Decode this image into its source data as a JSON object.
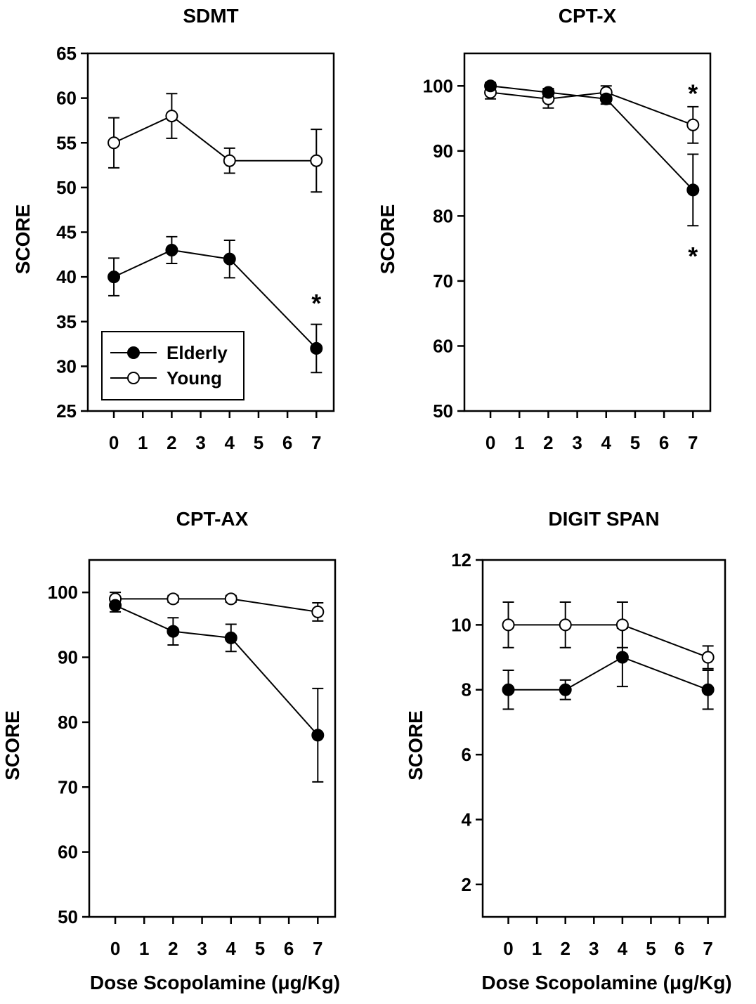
{
  "chart_data": [
    {
      "type": "line",
      "title": "SDMT",
      "ylabel": "SCORE",
      "xlabel": "",
      "x_ticks": [
        0,
        1,
        2,
        3,
        4,
        5,
        6,
        7
      ],
      "ylim": [
        25,
        65
      ],
      "y_ticks": [
        25,
        30,
        35,
        40,
        45,
        50,
        55,
        60,
        65
      ],
      "legend": {
        "placement": "bottom-left",
        "entries": [
          "Elderly",
          "Young"
        ]
      },
      "series": [
        {
          "name": "Elderly",
          "marker": "filled-circle",
          "x": [
            0,
            2,
            4,
            7
          ],
          "y": [
            40,
            43,
            42,
            32
          ],
          "err": [
            2.1,
            1.5,
            2.1,
            2.7
          ]
        },
        {
          "name": "Young",
          "marker": "open-circle",
          "x": [
            0,
            2,
            4,
            7
          ],
          "y": [
            55,
            58,
            53,
            53
          ],
          "err": [
            2.8,
            2.5,
            1.4,
            3.5
          ]
        }
      ],
      "annotations": [
        {
          "text": "*",
          "x": 7,
          "y": 37.2
        }
      ]
    },
    {
      "type": "line",
      "title": "CPT-X",
      "ylabel": "SCORE",
      "xlabel": "",
      "x_ticks": [
        0,
        1,
        2,
        3,
        4,
        5,
        6,
        7
      ],
      "ylim": [
        50,
        105
      ],
      "y_ticks": [
        50,
        60,
        70,
        80,
        90,
        100
      ],
      "series": [
        {
          "name": "Elderly",
          "marker": "filled-circle",
          "x": [
            0,
            2,
            4,
            7
          ],
          "y": [
            100,
            99,
            98,
            84
          ],
          "err": [
            0.5,
            0.6,
            0.8,
            5.5
          ]
        },
        {
          "name": "Young",
          "marker": "open-circle",
          "x": [
            0,
            2,
            4,
            7
          ],
          "y": [
            99,
            98,
            99,
            94
          ],
          "err": [
            1.0,
            1.4,
            1.0,
            2.8
          ]
        }
      ],
      "annotations": [
        {
          "text": "*",
          "x": 7,
          "y": 99.0
        },
        {
          "text": "*",
          "x": 7,
          "y": 74.0
        }
      ]
    },
    {
      "type": "line",
      "title": "CPT-AX",
      "ylabel": "SCORE",
      "xlabel": "Dose Scopolamine (μg/Kg)",
      "x_ticks": [
        0,
        1,
        2,
        3,
        4,
        5,
        6,
        7
      ],
      "ylim": [
        50,
        105
      ],
      "y_ticks": [
        50,
        60,
        70,
        80,
        90,
        100
      ],
      "series": [
        {
          "name": "Elderly",
          "marker": "filled-circle",
          "x": [
            0,
            2,
            4,
            7
          ],
          "y": [
            98,
            94,
            93,
            78
          ],
          "err": [
            1.0,
            2.1,
            2.1,
            7.2
          ]
        },
        {
          "name": "Young",
          "marker": "open-circle",
          "x": [
            0,
            2,
            4,
            7
          ],
          "y": [
            99,
            99,
            99,
            97
          ],
          "err": [
            1.0,
            0.5,
            0.5,
            1.4
          ]
        }
      ],
      "annotations": []
    },
    {
      "type": "line",
      "title": "DIGIT SPAN",
      "ylabel": "SCORE",
      "xlabel": "Dose Scopolamine (μg/Kg)",
      "x_ticks": [
        0,
        1,
        2,
        3,
        4,
        5,
        6,
        7
      ],
      "ylim": [
        1,
        12
      ],
      "y_ticks": [
        2,
        4,
        6,
        8,
        10,
        12
      ],
      "series": [
        {
          "name": "Elderly",
          "marker": "filled-circle",
          "x": [
            0,
            2,
            4,
            7
          ],
          "y": [
            8,
            8,
            9,
            8
          ],
          "err": [
            0.6,
            0.3,
            0.9,
            0.6
          ]
        },
        {
          "name": "Young",
          "marker": "open-circle",
          "x": [
            0,
            2,
            4,
            7
          ],
          "y": [
            10,
            10,
            10,
            9
          ],
          "err": [
            0.7,
            0.7,
            0.7,
            0.35
          ]
        }
      ],
      "annotations": []
    }
  ]
}
